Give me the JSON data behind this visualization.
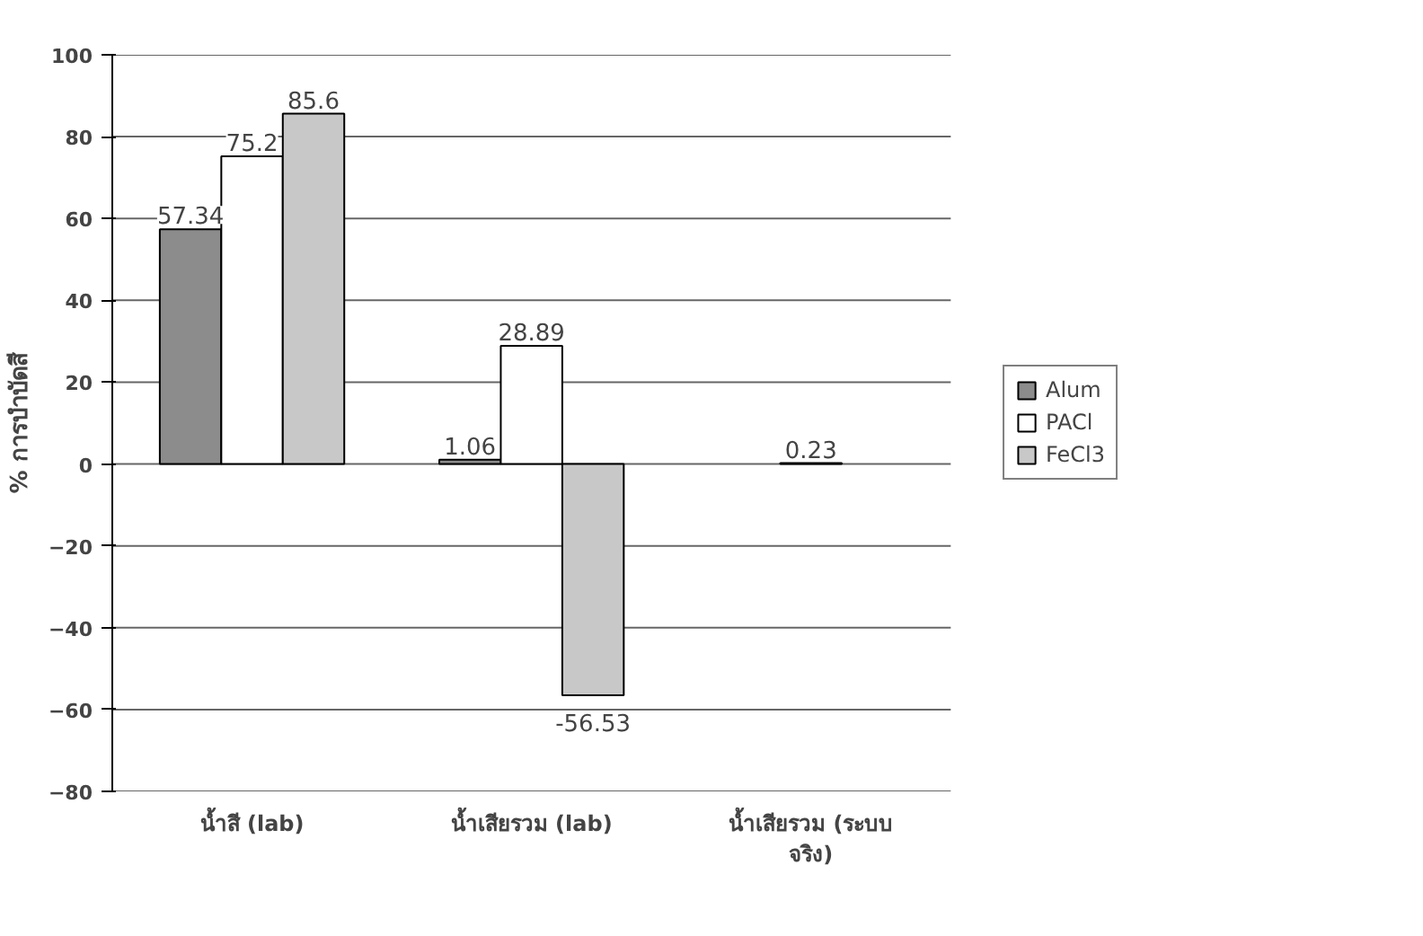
{
  "chart_data": {
    "type": "bar",
    "ylabel": "% การบำบัดสี",
    "categories": [
      "น้ำสี (lab)",
      "น้ำเสียรวม (lab)",
      "น้ำเสียรวม (ระบบ\nจริง)"
    ],
    "series": [
      {
        "name": "Alum",
        "color": "#8c8c8c",
        "values": [
          57.34,
          1.06,
          null
        ]
      },
      {
        "name": "PACl",
        "color": "#ffffff",
        "values": [
          75.2,
          28.89,
          0.23
        ]
      },
      {
        "name": "FeCl3",
        "color": "#c8c8c8",
        "values": [
          85.6,
          -56.53,
          null
        ]
      }
    ],
    "ylim": [
      -80,
      100
    ],
    "yticks": [
      -80,
      -60,
      -40,
      -20,
      0,
      20,
      40,
      60,
      80,
      100
    ],
    "grid": "y",
    "legend": "right",
    "data_labels": true
  }
}
